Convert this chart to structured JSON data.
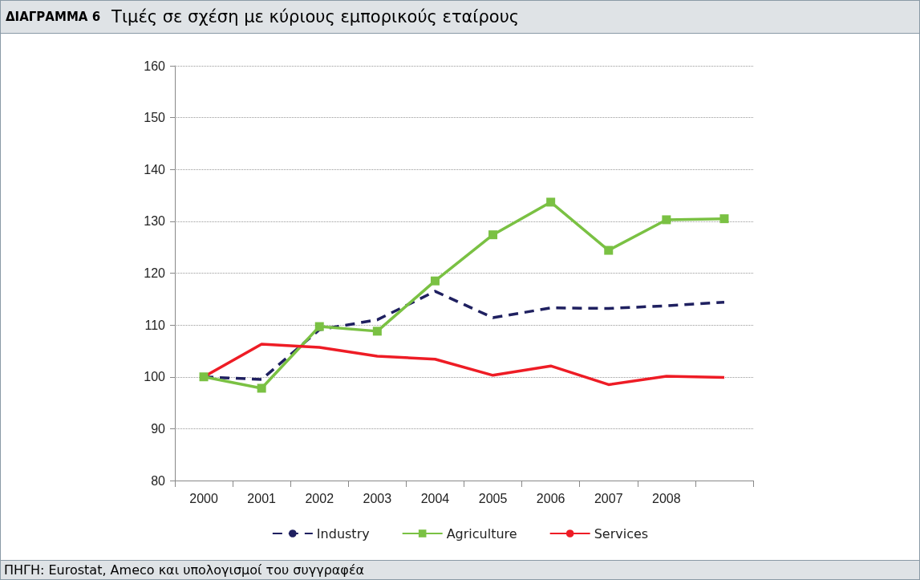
{
  "chart_data": {
    "type": "line",
    "title": "ΔΙΑΓΡΑΜΜΑ 6",
    "subtitle": "Τιμές σε σχέση με κύριους εμπορικούς εταίρους",
    "categories": [
      "2000",
      "2001",
      "2002",
      "2003",
      "2004",
      "2005",
      "2006",
      "2007",
      "2008",
      null
    ],
    "series": [
      {
        "name": "Industry",
        "color": "#1f2060",
        "line_style": "dashed",
        "marker": "none",
        "values": [
          100,
          99.5,
          109.1,
          111,
          116.5,
          111.4,
          113.3,
          113.2,
          113.7,
          114.4
        ]
      },
      {
        "name": "Agriculture",
        "color": "#7ac143",
        "line_style": "solid",
        "marker": "square",
        "values": [
          100,
          97.8,
          109.7,
          108.8,
          118.5,
          127.4,
          133.7,
          124.4,
          130.3,
          130.5
        ]
      },
      {
        "name": "Services",
        "color": "#ee1c25",
        "line_style": "solid",
        "marker": "none",
        "values": [
          100,
          106.3,
          105.7,
          104,
          103.4,
          100.3,
          102.1,
          98.5,
          100.1,
          99.9
        ]
      }
    ],
    "ylim": [
      80,
      160
    ],
    "yticks": [
      80,
      90,
      100,
      110,
      120,
      130,
      140,
      150,
      160
    ],
    "grid": "y",
    "legend": "bottom",
    "annotations": [
      "ΠΗΓΗ: Eurostat, Ameco και υπολογισμοί του συγγραφέα"
    ]
  }
}
